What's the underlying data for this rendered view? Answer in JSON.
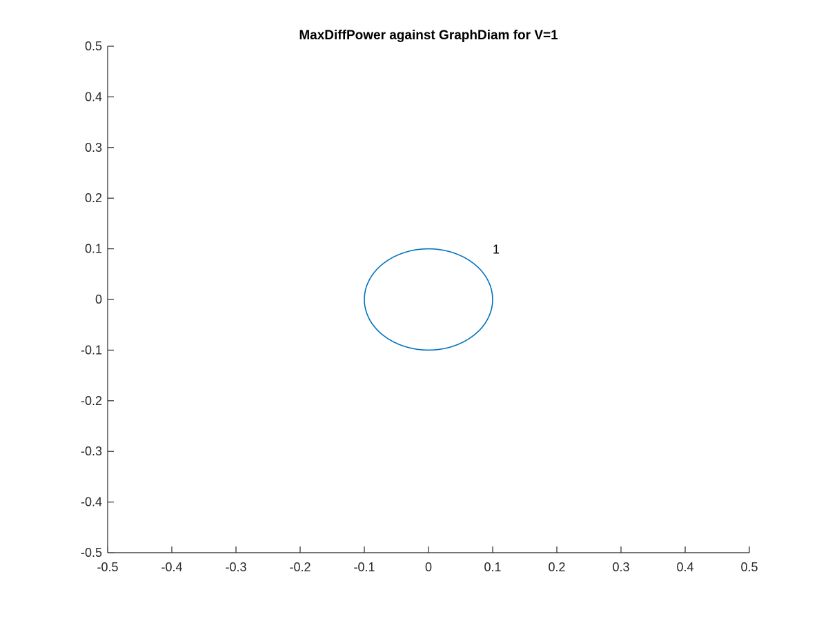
{
  "chart_data": {
    "type": "scatter",
    "title": "MaxDiffPower against GraphDiam for V=1",
    "xlabel": "",
    "ylabel": "",
    "xlim": [
      -0.5,
      0.5
    ],
    "ylim": [
      -0.5,
      0.5
    ],
    "x_ticks": [
      -0.5,
      -0.4,
      -0.3,
      -0.2,
      -0.1,
      0,
      0.1,
      0.2,
      0.3,
      0.4,
      0.5
    ],
    "x_tick_labels": [
      "-0.5",
      "-0.4",
      "-0.3",
      "-0.2",
      "-0.1",
      "0",
      "0.1",
      "0.2",
      "0.3",
      "0.4",
      "0.5"
    ],
    "y_ticks": [
      -0.5,
      -0.4,
      -0.3,
      -0.2,
      -0.1,
      0,
      0.1,
      0.2,
      0.3,
      0.4,
      0.5
    ],
    "y_tick_labels": [
      "-0.5",
      "-0.4",
      "-0.3",
      "-0.2",
      "-0.1",
      "0",
      "0.1",
      "0.2",
      "0.3",
      "0.4",
      "0.5"
    ],
    "grid": false,
    "box": false,
    "series": [
      {
        "marker": "circle",
        "color": "#0072BD",
        "points": [
          {
            "x": 0,
            "y": 0,
            "radius": 0.1
          }
        ]
      }
    ],
    "annotations": [
      {
        "text": "1",
        "x": 0.1,
        "y": 0.1
      }
    ]
  },
  "colors": {
    "axis": "#262626",
    "series": "#0072BD",
    "background": "#ffffff"
  }
}
